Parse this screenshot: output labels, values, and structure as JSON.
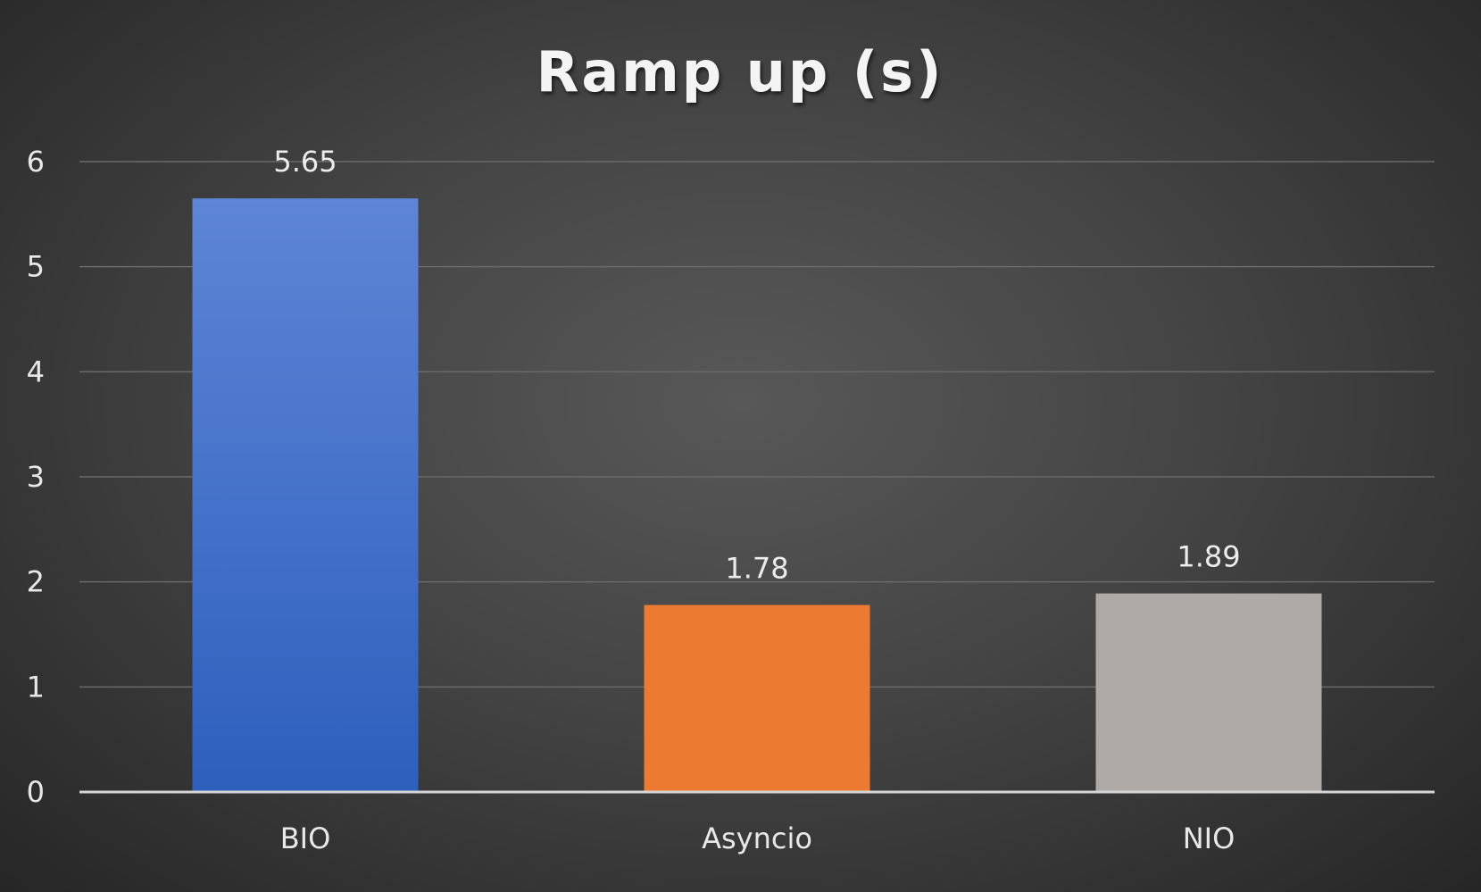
{
  "chart_data": {
    "type": "bar",
    "title": "Ramp up (s)",
    "categories": [
      "BIO",
      "Asyncio",
      "NIO"
    ],
    "values": [
      5.65,
      1.78,
      1.89
    ],
    "data_labels": [
      "5.65",
      "1.78",
      "1.89"
    ],
    "xlabel": "",
    "ylabel": "",
    "ylim": [
      0,
      6
    ],
    "yticks": [
      0,
      1,
      2,
      3,
      4,
      5,
      6
    ],
    "grid": true,
    "legend": "none",
    "colors": {
      "background": "#444444",
      "bars": [
        "#3a6fcf",
        "#ec7a30",
        "#adaaa8"
      ],
      "text": "#eeeeee"
    }
  }
}
